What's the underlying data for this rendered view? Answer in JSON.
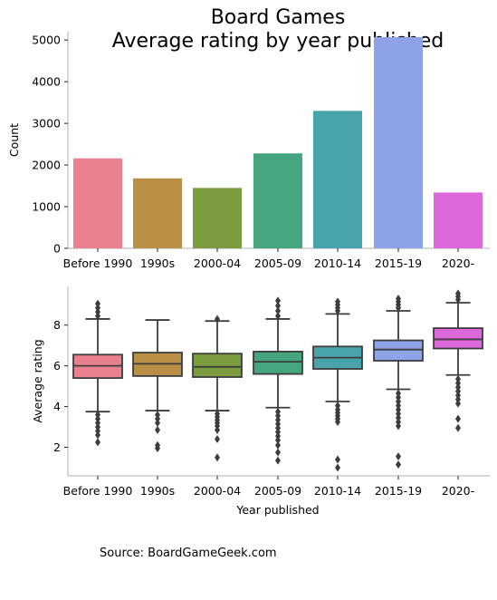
{
  "title_line1": "Board Games",
  "title_line2": "Average rating by year published",
  "source": "Source: BoardGameGeek.com",
  "chart_data": [
    {
      "type": "bar",
      "categories": [
        "Before 1990",
        "1990s",
        "2000-04",
        "2005-09",
        "2010-14",
        "2015-19",
        "2020-"
      ],
      "values": [
        2160,
        1680,
        1450,
        2280,
        3300,
        5070,
        1340
      ],
      "ylabel": "Count",
      "ylim": [
        0,
        5200
      ],
      "yticks": [
        0,
        1000,
        2000,
        3000,
        4000,
        5000
      ],
      "colors": [
        "#e8808f",
        "#b88f44",
        "#7b9c3f",
        "#44a57f",
        "#48a3ab",
        "#8ea2e8",
        "#dc68dc"
      ],
      "grid": false
    },
    {
      "type": "box",
      "categories": [
        "Before 1990",
        "1990s",
        "2000-04",
        "2005-09",
        "2010-14",
        "2015-19",
        "2020-"
      ],
      "xlabel": "Year published",
      "ylabel": "Average rating",
      "ylim": [
        0.6,
        9.9
      ],
      "yticks": [
        2,
        4,
        6,
        8
      ],
      "colors": [
        "#e8808f",
        "#b88f44",
        "#7b9c3f",
        "#44a57f",
        "#48a3ab",
        "#8ea2e8",
        "#dc68dc"
      ],
      "grid": false,
      "boxes": [
        {
          "whisker_low": 3.75,
          "q1": 5.4,
          "median": 6.0,
          "q3": 6.55,
          "whisker_high": 8.3,
          "outliers": [
            3.6,
            3.4,
            3.2,
            3.0,
            2.8,
            2.6,
            2.25,
            8.45,
            8.65,
            8.85,
            9.05
          ]
        },
        {
          "whisker_low": 3.8,
          "q1": 5.5,
          "median": 6.1,
          "q3": 6.65,
          "whisker_high": 8.25,
          "outliers": [
            3.6,
            3.4,
            3.2,
            2.85,
            2.1,
            1.95
          ]
        },
        {
          "whisker_low": 3.8,
          "q1": 5.45,
          "median": 5.95,
          "q3": 6.6,
          "whisker_high": 8.2,
          "outliers": [
            3.65,
            3.5,
            3.35,
            3.2,
            3.05,
            2.85,
            2.4,
            1.5,
            8.3
          ]
        },
        {
          "whisker_low": 3.95,
          "q1": 5.6,
          "median": 6.2,
          "q3": 6.7,
          "whisker_high": 8.3,
          "outliers": [
            3.75,
            3.55,
            3.35,
            3.15,
            2.95,
            2.75,
            2.55,
            2.35,
            2.1,
            1.75,
            1.35,
            8.45,
            8.7,
            8.95,
            9.2
          ]
        },
        {
          "whisker_low": 4.25,
          "q1": 5.85,
          "median": 6.4,
          "q3": 6.95,
          "whisker_high": 8.55,
          "outliers": [
            4.05,
            3.85,
            3.7,
            3.55,
            3.4,
            3.25,
            1.4,
            1.0,
            8.7,
            8.85,
            9.0,
            9.15
          ]
        },
        {
          "whisker_low": 4.85,
          "q1": 6.25,
          "median": 6.8,
          "q3": 7.25,
          "whisker_high": 8.7,
          "outliers": [
            4.65,
            4.45,
            4.25,
            4.05,
            3.85,
            3.65,
            3.45,
            3.25,
            3.05,
            1.55,
            1.15,
            8.85,
            9.0,
            9.15,
            9.3
          ]
        },
        {
          "whisker_low": 5.55,
          "q1": 6.85,
          "median": 7.3,
          "q3": 7.85,
          "whisker_high": 9.1,
          "outliers": [
            5.35,
            5.15,
            4.95,
            4.75,
            4.55,
            4.35,
            4.15,
            3.4,
            2.95,
            9.25,
            9.4,
            9.55
          ]
        }
      ]
    }
  ]
}
